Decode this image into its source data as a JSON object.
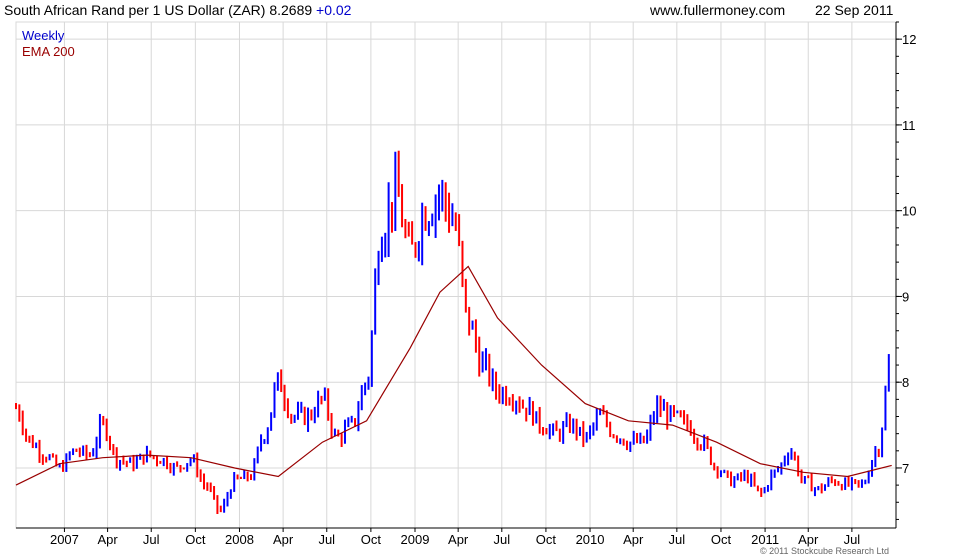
{
  "header": {
    "title": "South African Rand per 1 US Dollar (ZAR) 8.2689",
    "change": "+0.02",
    "site": "www.fullermoney.com",
    "date": "22 Sep 2011"
  },
  "footer": {
    "copyright": "© 2011 Stockcube Research Ltd"
  },
  "colors": {
    "up": "#0000ff",
    "down": "#ff0000",
    "ema": "#990000",
    "grid": "#d8d8d8",
    "axis": "#000000"
  },
  "chart_data": {
    "type": "line",
    "title": "South African Rand per 1 US Dollar (ZAR)",
    "last_value": 8.2689,
    "change": 0.02,
    "frequency": "Weekly",
    "x_tick_labels": [
      "2007",
      "Apr",
      "Jul",
      "Oct",
      "2008",
      "Apr",
      "Jul",
      "Oct",
      "2009",
      "Apr",
      "Jul",
      "Oct",
      "2010",
      "Apr",
      "Jul",
      "Oct",
      "2011",
      "Apr",
      "Jul"
    ],
    "ylim": [
      6.3,
      12.2
    ],
    "y_ticks": [
      7,
      8,
      9,
      10,
      11,
      12
    ],
    "grid": true,
    "legend": "top-left",
    "series": [
      {
        "name": "Weekly",
        "style": "ohlc-bars",
        "x": [
          "2006-09-22",
          "2006-10-22",
          "2006-11-22",
          "2006-12-22",
          "2007-01-22",
          "2007-02-22",
          "2007-03-22",
          "2007-04-22",
          "2007-05-22",
          "2007-06-22",
          "2007-07-22",
          "2007-08-22",
          "2007-09-22",
          "2007-10-22",
          "2007-11-22",
          "2007-12-22",
          "2008-01-22",
          "2008-02-22",
          "2008-03-22",
          "2008-04-22",
          "2008-05-22",
          "2008-06-22",
          "2008-07-22",
          "2008-08-22",
          "2008-09-22",
          "2008-10-22",
          "2008-11-22",
          "2008-12-22",
          "2009-01-22",
          "2009-02-22",
          "2009-03-22",
          "2009-04-22",
          "2009-05-22",
          "2009-06-22",
          "2009-07-22",
          "2009-08-22",
          "2009-09-22",
          "2009-10-22",
          "2009-11-22",
          "2009-12-22",
          "2010-01-22",
          "2010-02-22",
          "2010-03-22",
          "2010-04-22",
          "2010-05-22",
          "2010-06-22",
          "2010-07-22",
          "2010-08-22",
          "2010-09-22",
          "2010-10-22",
          "2010-11-22",
          "2010-12-22",
          "2011-01-22",
          "2011-02-22",
          "2011-03-22",
          "2011-04-22",
          "2011-05-22",
          "2011-06-22",
          "2011-07-22",
          "2011-08-22",
          "2011-09-22"
        ],
        "values": [
          7.7,
          7.3,
          7.15,
          7.0,
          7.2,
          7.15,
          7.5,
          7.1,
          7.05,
          7.15,
          7.1,
          7.0,
          7.1,
          6.8,
          6.5,
          6.85,
          6.9,
          7.4,
          8.0,
          7.6,
          7.6,
          7.8,
          7.35,
          7.5,
          8.0,
          9.8,
          10.2,
          9.5,
          10.0,
          10.2,
          9.9,
          8.7,
          8.2,
          7.9,
          7.85,
          7.7,
          7.5,
          7.4,
          7.5,
          7.35,
          7.6,
          7.4,
          7.3,
          7.3,
          7.7,
          7.6,
          7.5,
          7.3,
          7.0,
          6.85,
          6.9,
          6.7,
          6.95,
          7.2,
          6.85,
          6.75,
          6.85,
          6.8,
          6.8,
          7.2,
          8.27
        ]
      },
      {
        "name": "EMA 200",
        "style": "line",
        "x": [
          "2006-09-22",
          "2006-12-22",
          "2007-03-22",
          "2007-06-22",
          "2007-09-22",
          "2007-12-22",
          "2008-03-22",
          "2008-06-22",
          "2008-09-22",
          "2008-12-22",
          "2009-02-22",
          "2009-04-22",
          "2009-06-22",
          "2009-09-22",
          "2009-12-22",
          "2010-03-22",
          "2010-06-22",
          "2010-09-22",
          "2010-12-22",
          "2011-03-22",
          "2011-06-22",
          "2011-09-22"
        ],
        "values": [
          6.8,
          7.05,
          7.12,
          7.15,
          7.12,
          7.0,
          6.9,
          7.3,
          7.55,
          8.4,
          9.05,
          9.35,
          8.75,
          8.2,
          7.75,
          7.55,
          7.5,
          7.3,
          7.05,
          6.95,
          6.9,
          7.03
        ]
      }
    ]
  }
}
